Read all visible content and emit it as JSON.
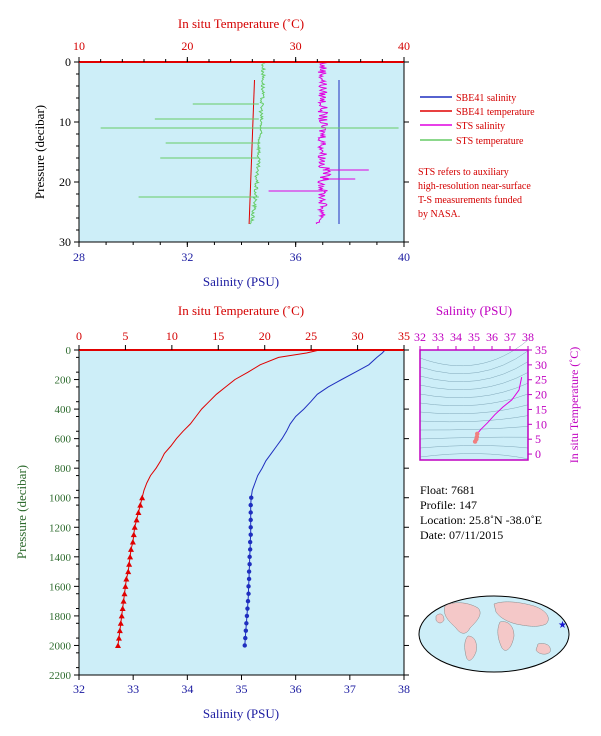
{
  "colors": {
    "background_panel": "#cdeef8",
    "salinity": "#1f2fbf",
    "temperature": "#e00000",
    "sts_salinity": "#e000e0",
    "sts_temperature": "#66cc66",
    "salinity_axis_text": "#1a1aa0",
    "temperature_axis_text": "#d40000",
    "pressure_axis_text": "#2e6b2e",
    "ts_axis_text": "#c000c0"
  },
  "top_panel": {
    "temp_axis_title": "In situ Temperature (˚C)",
    "sal_axis_title": "Salinity (PSU)",
    "pressure_axis_title": "Pressure (decibar)",
    "temp_ticks": [
      "10",
      "20",
      "30",
      "40"
    ],
    "sal_ticks": [
      "28",
      "32",
      "36",
      "40"
    ],
    "pressure_ticks": [
      "0",
      "10",
      "20",
      "30"
    ],
    "legend": [
      {
        "label": "SBE41 salinity",
        "color": "#1f2fbf"
      },
      {
        "label": "SBE41 temperature",
        "color": "#e00000"
      },
      {
        "label": "STS salinity",
        "color": "#e000e0"
      },
      {
        "label": "STS temperature",
        "color": "#66cc66"
      }
    ],
    "note_lines": [
      "STS refers to auxiliary",
      "high-resolution near-surface",
      "T-S measurements funded",
      "by NASA."
    ]
  },
  "bottom_panel": {
    "temp_axis_title": "In situ Temperature (˚C)",
    "sal_axis_title": "Salinity (PSU)",
    "pressure_axis_title": "Pressure (decibar)",
    "temp_ticks": [
      "0",
      "5",
      "10",
      "15",
      "20",
      "25",
      "30",
      "35"
    ],
    "sal_ticks": [
      "32",
      "33",
      "34",
      "35",
      "36",
      "37",
      "38"
    ],
    "pressure_ticks": [
      "0",
      "200",
      "400",
      "600",
      "800",
      "1000",
      "1200",
      "1400",
      "1600",
      "1800",
      "2000",
      "2200"
    ]
  },
  "ts_panel": {
    "sal_axis_title": "Salinity (PSU)",
    "temp_axis_title": "In situ Temperature (˚C)",
    "sal_ticks": [
      "32",
      "33",
      "34",
      "35",
      "36",
      "37",
      "38"
    ],
    "temp_ticks": [
      "0",
      "5",
      "10",
      "15",
      "20",
      "25",
      "30",
      "35"
    ]
  },
  "info": {
    "float": "Float:  7681",
    "profile": "Profile:  147",
    "location": "Location:  25.8˚N  -38.0˚E",
    "date": "Date:  07/11/2015"
  },
  "map": {
    "marker_lat": 25.8,
    "marker_lon": -38.0,
    "marker_color": "#1a1ad0"
  },
  "chart_data": [
    {
      "type": "line",
      "panel": "bottom",
      "xlabel": "Salinity (PSU)",
      "x2label": "In situ Temperature (˚C)",
      "ylabel": "Pressure (decibar)",
      "xlim": [
        32,
        38
      ],
      "x2lim": [
        0,
        35
      ],
      "ylim": [
        2200,
        0
      ],
      "series": [
        {
          "name": "SBE41 salinity",
          "axis": "salinity",
          "pressure": [
            0,
            20,
            50,
            100,
            150,
            200,
            250,
            300,
            350,
            400,
            450,
            500,
            550,
            600,
            650,
            700,
            750,
            800,
            850,
            900,
            950,
            1000,
            1050,
            1100,
            1150,
            1200,
            1250,
            1300,
            1350,
            1400,
            1450,
            1500,
            1550,
            1600,
            1650,
            1700,
            1750,
            1800,
            1850,
            1900,
            1950,
            2000
          ],
          "values": [
            37.65,
            37.6,
            37.5,
            37.35,
            37.1,
            36.85,
            36.6,
            36.4,
            36.28,
            36.15,
            36.0,
            35.9,
            35.83,
            35.75,
            35.65,
            35.55,
            35.45,
            35.38,
            35.3,
            35.25,
            35.2,
            35.18,
            35.17,
            35.17,
            35.17,
            35.17,
            35.17,
            35.16,
            35.16,
            35.15,
            35.15,
            35.14,
            35.14,
            35.13,
            35.13,
            35.12,
            35.11,
            35.1,
            35.09,
            35.08,
            35.07,
            35.06
          ]
        },
        {
          "name": "SBE41 temperature",
          "axis": "temperature",
          "pressure": [
            0,
            20,
            50,
            100,
            150,
            200,
            250,
            300,
            350,
            400,
            450,
            500,
            550,
            600,
            650,
            700,
            750,
            800,
            850,
            900,
            950,
            1000,
            1050,
            1100,
            1150,
            1200,
            1250,
            1300,
            1350,
            1400,
            1450,
            1500,
            1550,
            1600,
            1650,
            1700,
            1750,
            1800,
            1850,
            1900,
            1950,
            2000
          ],
          "values": [
            25.9,
            24.5,
            21.5,
            19.5,
            18.2,
            16.8,
            15.8,
            14.8,
            14.0,
            13.2,
            12.6,
            12.0,
            11.2,
            10.5,
            9.9,
            9.2,
            8.8,
            8.3,
            7.7,
            7.3,
            7.0,
            6.8,
            6.6,
            6.4,
            6.2,
            6.0,
            5.9,
            5.8,
            5.6,
            5.5,
            5.4,
            5.3,
            5.1,
            5.0,
            4.9,
            4.8,
            4.7,
            4.6,
            4.5,
            4.4,
            4.3,
            4.2
          ]
        }
      ]
    },
    {
      "type": "line",
      "panel": "top",
      "xlabel": "Salinity (PSU)",
      "x2label": "In situ Temperature (˚C)",
      "ylabel": "Pressure (decibar)",
      "xlim": [
        28,
        40
      ],
      "x2lim": [
        10,
        40
      ],
      "ylim": [
        30,
        0
      ],
      "series": [
        {
          "name": "SBE41 salinity",
          "axis": "salinity",
          "pressure": [
            3,
            27
          ],
          "values": [
            37.6,
            37.6
          ]
        },
        {
          "name": "SBE41 temperature",
          "axis": "temperature",
          "pressure": [
            3,
            27
          ],
          "values": [
            26.2,
            25.7
          ]
        },
        {
          "name": "STS salinity",
          "axis": "salinity",
          "pressure": [
            0,
            3,
            6,
            9,
            10.8,
            12,
            15,
            17.5,
            18,
            20,
            21.5,
            24,
            26,
            27
          ],
          "values": [
            37.0,
            37.0,
            37.0,
            37.0,
            37.0,
            37.0,
            37.0,
            37.0,
            37.2,
            37.0,
            37.0,
            37.0,
            37.0,
            36.8
          ]
        },
        {
          "name": "STS temperature",
          "axis": "temperature",
          "pressure": [
            0,
            3,
            6,
            9,
            10.8,
            12,
            15,
            17.5,
            18,
            20,
            21.5,
            24,
            26,
            27
          ],
          "values": [
            27.0,
            27.0,
            26.9,
            26.8,
            26.8,
            26.7,
            26.6,
            26.5,
            26.4,
            26.4,
            26.3,
            26.2,
            26.0,
            25.9
          ]
        }
      ]
    },
    {
      "type": "line",
      "panel": "ts",
      "xlabel": "Salinity (PSU)",
      "ylabel": "In situ Temperature (˚C)",
      "xlim": [
        32,
        38
      ],
      "ylim": [
        -2,
        35
      ],
      "series": [
        {
          "name": "profile",
          "x": [
            37.65,
            37.5,
            37.1,
            36.6,
            36.15,
            35.75,
            35.38,
            35.18,
            35.16,
            35.13,
            35.06
          ],
          "y": [
            25.9,
            21.5,
            18.2,
            15.8,
            13.2,
            10.5,
            8.3,
            6.8,
            5.8,
            5.0,
            4.2
          ]
        }
      ]
    }
  ]
}
